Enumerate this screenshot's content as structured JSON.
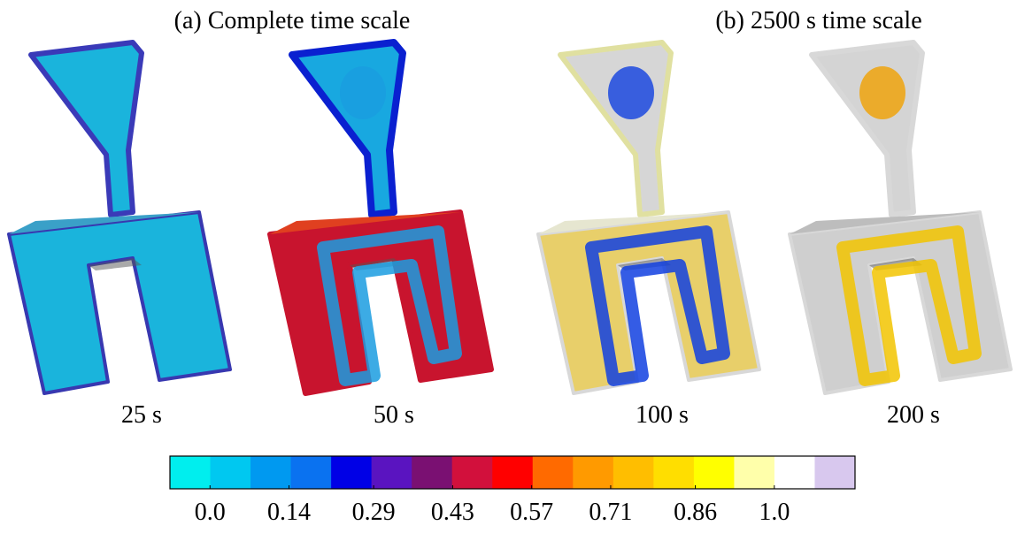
{
  "titles": [
    "(a) Complete time scale",
    "(b) 2500 s time scale"
  ],
  "panels": [
    {
      "label": "25 s"
    },
    {
      "label": "50 s"
    },
    {
      "label": "100 s"
    },
    {
      "label": "200 s"
    }
  ],
  "colorbar": {
    "colors": [
      "#00eeee",
      "#00c8f0",
      "#0099f0",
      "#0a72f0",
      "#0000e6",
      "#5a14c0",
      "#7a1072",
      "#d2103c",
      "#ff0000",
      "#ff6a00",
      "#ff9a00",
      "#ffbe00",
      "#ffde00",
      "#ffff00",
      "#ffffaa",
      "#ffffff",
      "#d8c8ee"
    ],
    "lim": [
      -0.071,
      1.143
    ],
    "ticks": [
      {
        "value": 0,
        "label": "0.0"
      },
      0.14,
      0.29,
      0.43,
      0.57,
      0.71,
      0.86,
      {
        "value": 1,
        "label": "1.0"
      }
    ]
  }
}
